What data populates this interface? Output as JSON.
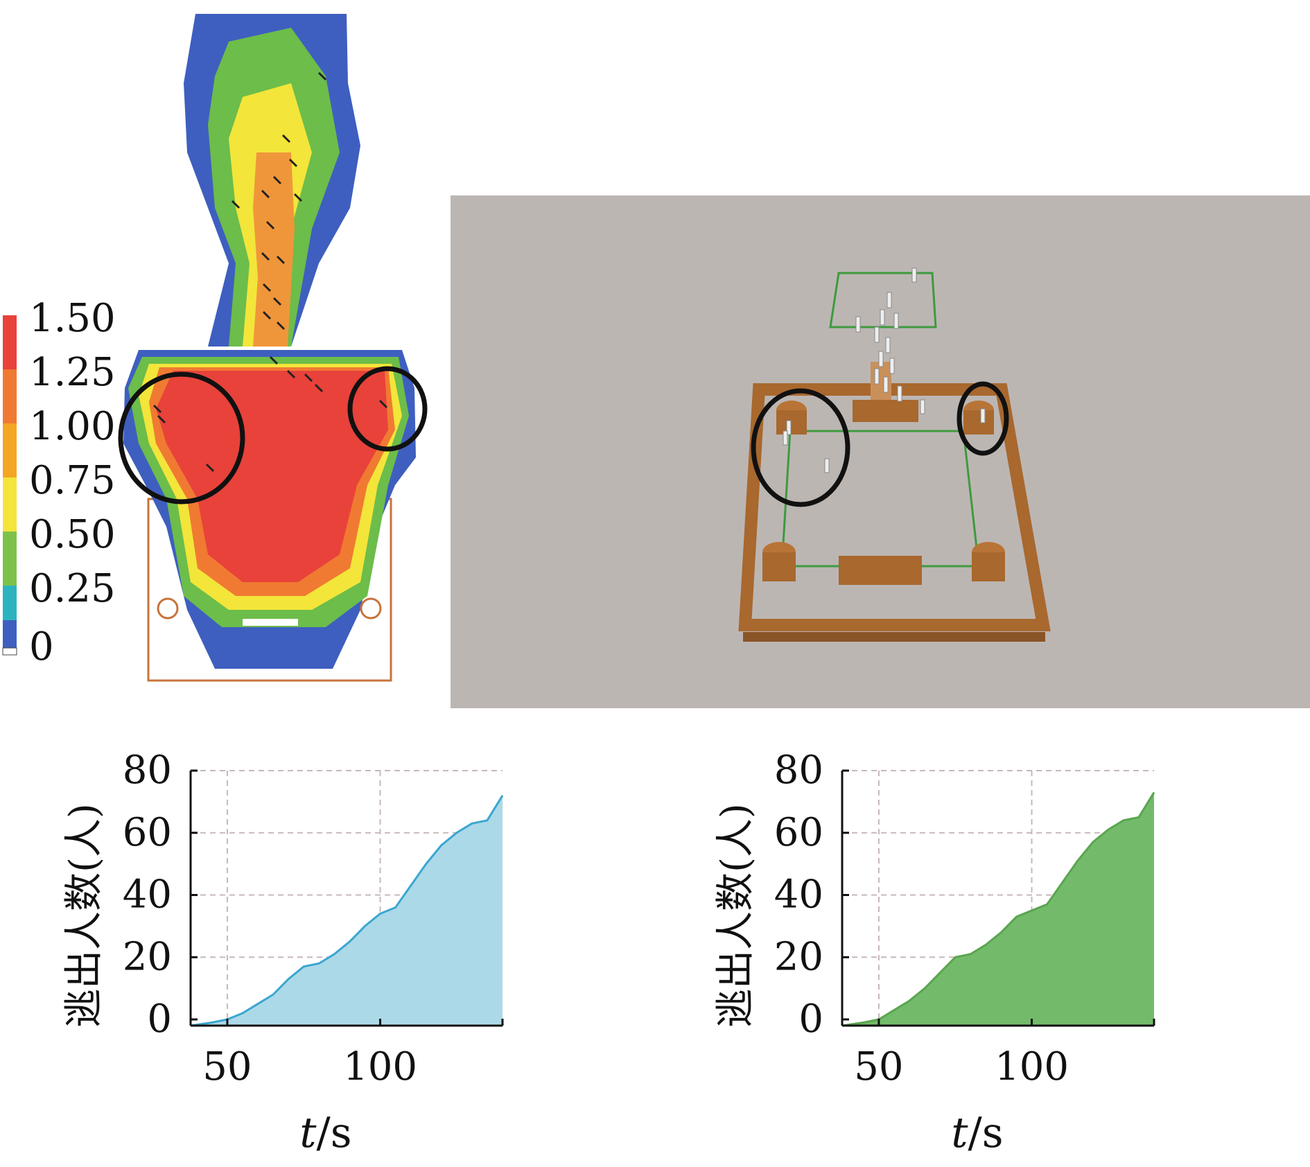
{
  "colorbar": {
    "ticks": [
      "1.50",
      "1.25",
      "1.00",
      "0.75",
      "0.50",
      "0.25",
      "0"
    ],
    "colors": [
      "#e8423a",
      "#f07a32",
      "#f5a623",
      "#f3e53a",
      "#7cc24a",
      "#2db3c0",
      "#3e5fbf"
    ]
  },
  "chart_data": [
    {
      "type": "area",
      "xlabel_italic": "t",
      "xlabel_rest": "/s",
      "ylabel": "逃出人数(人)",
      "xticks": [
        "50",
        "100"
      ],
      "yticks": [
        "80",
        "60",
        "40",
        "20",
        "0"
      ],
      "xlim": [
        38,
        140
      ],
      "ylim": [
        -2,
        80
      ],
      "grid": true,
      "fill_color": "#acd9e8",
      "line_color": "#3aa6d0",
      "x": [
        38,
        45,
        50,
        55,
        60,
        65,
        70,
        75,
        80,
        85,
        90,
        95,
        100,
        105,
        110,
        115,
        120,
        125,
        130,
        135,
        140
      ],
      "y": [
        -2,
        -1,
        0,
        2,
        5,
        8,
        13,
        17,
        18,
        21,
        25,
        30,
        34,
        36,
        43,
        50,
        56,
        60,
        63,
        64,
        72
      ]
    },
    {
      "type": "area",
      "xlabel_italic": "t",
      "xlabel_rest": "/s",
      "ylabel": "逃出人数(人)",
      "xticks": [
        "50",
        "100"
      ],
      "yticks": [
        "80",
        "60",
        "40",
        "20",
        "0"
      ],
      "xlim": [
        38,
        140
      ],
      "ylim": [
        -2,
        80
      ],
      "grid": true,
      "fill_color": "#73bb6a",
      "line_color": "#5aa550",
      "x": [
        38,
        45,
        50,
        55,
        60,
        65,
        70,
        75,
        80,
        85,
        90,
        95,
        100,
        105,
        110,
        115,
        120,
        125,
        130,
        135,
        140
      ],
      "y": [
        -2,
        -1,
        0,
        3,
        6,
        10,
        15,
        20,
        21,
        24,
        28,
        33,
        35,
        37,
        44,
        51,
        57,
        61,
        64,
        65,
        73
      ]
    }
  ]
}
